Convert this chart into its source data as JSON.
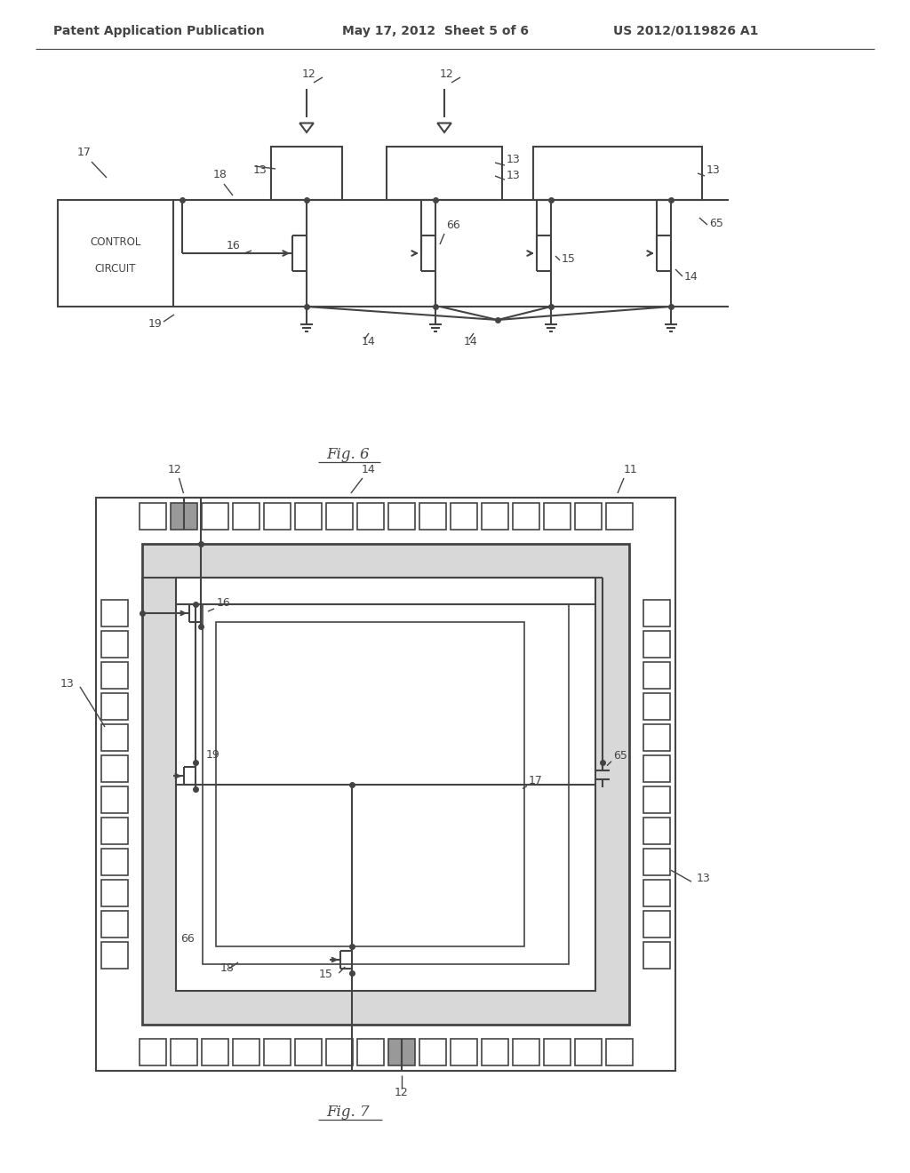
{
  "bg_color": "#ffffff",
  "header_text": "Patent Application Publication",
  "header_date": "May 17, 2012  Sheet 5 of 6",
  "header_num": "US 2012/0119826 A1",
  "fig6_caption": "Fig. 6",
  "fig7_caption": "Fig. 7",
  "line_color": "#444444",
  "line_width": 1.5,
  "thin_line": 1.0,
  "label_fontsize": 9,
  "header_fontsize": 10,
  "gray_pad": "#999999",
  "light_gray": "#d8d8d8"
}
